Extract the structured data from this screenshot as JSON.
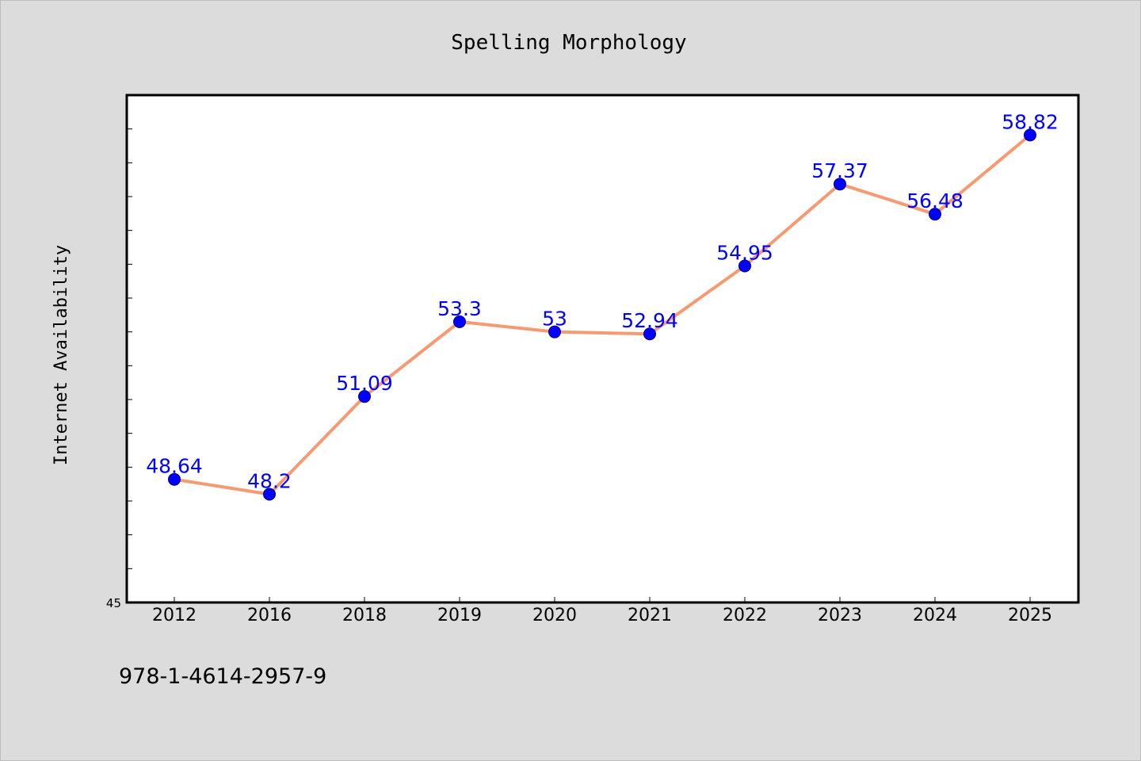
{
  "colors": {
    "background": "#dcdcdc",
    "plot_background": "#ffffff",
    "line": "#f79a72",
    "marker": "#0000ff",
    "label": "#0000ff"
  },
  "footer": {
    "isbn": "978-1-4614-2957-9"
  },
  "chart_data": {
    "type": "line",
    "title": "Spelling Morphology",
    "xlabel": "",
    "ylabel": "Internet Availability",
    "categories": [
      "2012",
      "2016",
      "2018",
      "2019",
      "2020",
      "2021",
      "2022",
      "2023",
      "2024",
      "2025"
    ],
    "series": [
      {
        "values": [
          48.64,
          48.2,
          51.09,
          53.3,
          53,
          52.94,
          54.95,
          57.37,
          56.48,
          58.82
        ]
      }
    ],
    "value_labels": [
      "48.64",
      "48.2",
      "51.09",
      "53.3",
      "53",
      "52.94",
      "54.95",
      "57.37",
      "56.48",
      "58.82"
    ],
    "ylim": [
      45,
      60
    ],
    "y_tick_labels": [
      "45"
    ],
    "grid": false,
    "legend": "none"
  }
}
